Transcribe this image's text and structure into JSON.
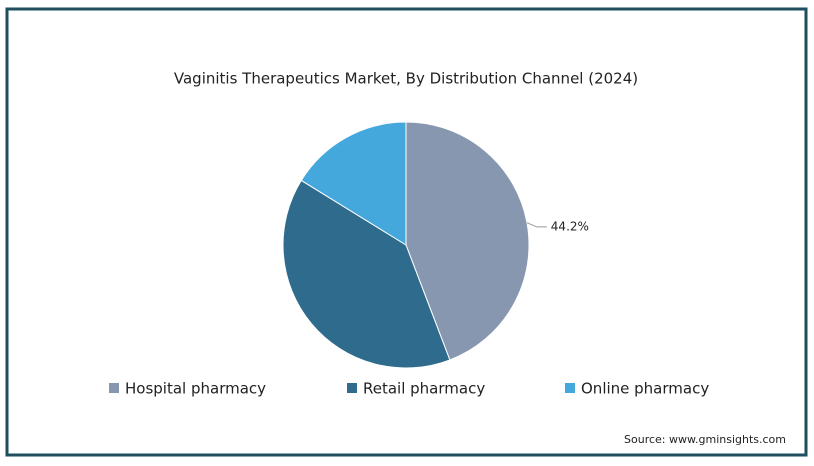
{
  "chart_data": {
    "type": "pie",
    "title": "Vaginitis Therapeutics Market, By Distribution Channel (2024)",
    "categories": [
      "Hospital pharmacy",
      "Retail pharmacy",
      "Online pharmacy"
    ],
    "values": [
      44.2,
      39.6,
      16.2
    ],
    "value_labels": [
      "44.2%",
      null,
      null
    ],
    "colors": [
      "#8797b0",
      "#2e6b8c",
      "#44a8dc"
    ],
    "source": "Source: www.gminsights.com"
  }
}
